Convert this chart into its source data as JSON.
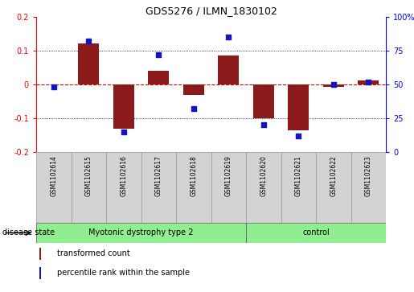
{
  "title": "GDS5276 / ILMN_1830102",
  "samples": [
    "GSM1102614",
    "GSM1102615",
    "GSM1102616",
    "GSM1102617",
    "GSM1102618",
    "GSM1102619",
    "GSM1102620",
    "GSM1102621",
    "GSM1102622",
    "GSM1102623"
  ],
  "transformed_count": [
    0.0,
    0.122,
    -0.13,
    0.04,
    -0.03,
    0.085,
    -0.1,
    -0.135,
    -0.008,
    0.012
  ],
  "percentile_rank": [
    48,
    82,
    15,
    72,
    32,
    85,
    20,
    12,
    50,
    52
  ],
  "ylim_left": [
    -0.2,
    0.2
  ],
  "ylim_right": [
    0,
    100
  ],
  "yticks_left": [
    -0.2,
    -0.1,
    0.0,
    0.1,
    0.2
  ],
  "yticks_right": [
    0,
    25,
    50,
    75,
    100
  ],
  "ytick_labels_right": [
    "0",
    "25",
    "50",
    "75",
    "100%"
  ],
  "bar_color": "#8B1A1A",
  "dot_color": "#1515BB",
  "zero_line_color": "#CC0000",
  "grid_color": "#000000",
  "disease_groups": [
    {
      "label": "Myotonic dystrophy type 2",
      "start": 0,
      "end": 6,
      "color": "#90EE90"
    },
    {
      "label": "control",
      "start": 6,
      "end": 10,
      "color": "#90EE90"
    }
  ],
  "legend_bar_label": "transformed count",
  "legend_dot_label": "percentile rank within the sample",
  "disease_state_label": "disease state",
  "background_color": "#FFFFFF",
  "plot_bg_color": "#FFFFFF",
  "label_box_color": "#D3D3D3",
  "label_box_edge": "#999999",
  "title_fontsize": 9,
  "tick_fontsize": 7,
  "sample_fontsize": 5.5,
  "ds_fontsize": 7,
  "legend_fontsize": 7
}
